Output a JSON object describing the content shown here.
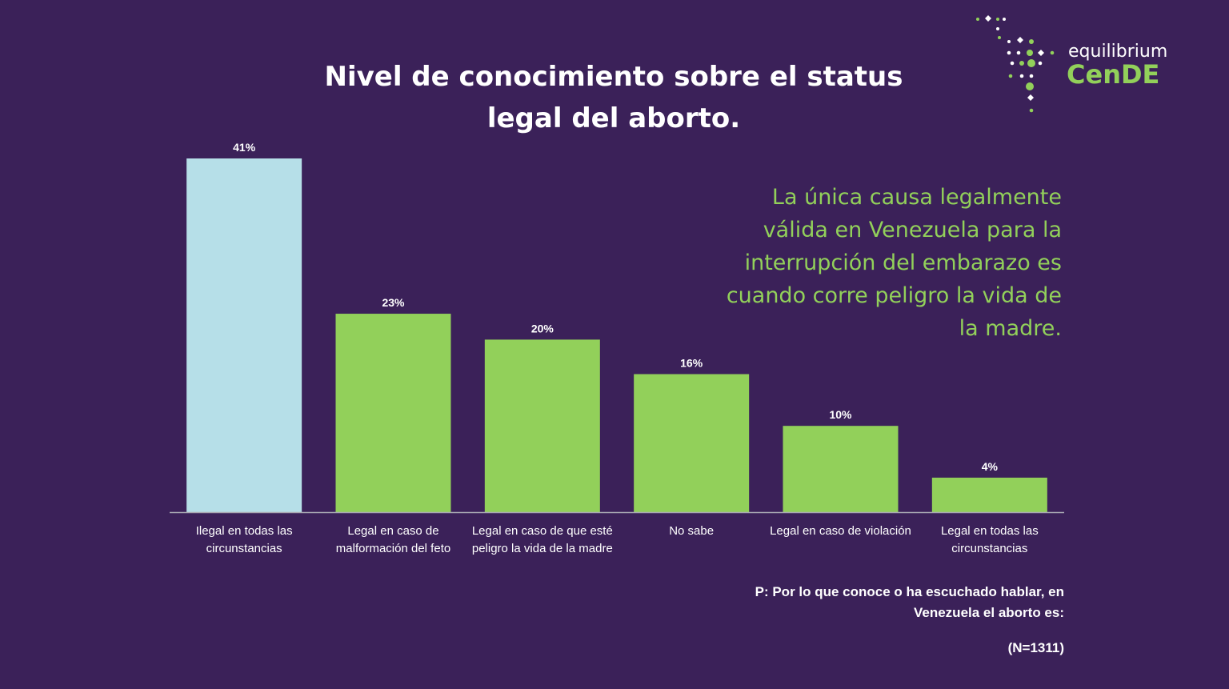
{
  "chart_data": {
    "type": "bar",
    "title": "Nivel de conocimiento sobre el status legal del aborto.",
    "categories": [
      [
        "Ilegal en todas las",
        "circunstancias"
      ],
      [
        "Legal en caso de",
        "malformación del feto"
      ],
      [
        "Legal en caso de que esté",
        "peligro la vida de la madre"
      ],
      [
        "No sabe"
      ],
      [
        "Legal en caso de violación"
      ],
      [
        "Legal en todas las",
        "circunstancias"
      ]
    ],
    "values": [
      41,
      23,
      20,
      16,
      10,
      4
    ],
    "value_labels": [
      "41%",
      "23%",
      "20%",
      "16%",
      "10%",
      "4%"
    ],
    "unit": "%",
    "bar_colors": [
      "#b6dfe8",
      "#92d05a",
      "#92d05a",
      "#92d05a",
      "#92d05a",
      "#92d05a"
    ],
    "ylim": [
      0,
      41
    ],
    "grid": false,
    "annotation": [
      "La única causa legalmente",
      "válida en Venezuela para la",
      "interrupción del embarazo es",
      "cuando corre peligro la vida de",
      "la madre."
    ]
  },
  "title_lines": [
    "Nivel de conocimiento sobre el status",
    "legal del aborto."
  ],
  "question_lines": [
    "P: Por lo que conoce o ha escuchado hablar, en",
    "Venezuela el aborto es:"
  ],
  "sample": "(N=1311)",
  "logo": {
    "top": "equilibrium",
    "bottom": "CenDE"
  },
  "colors": {
    "background": "#3b2159",
    "accent_green": "#92d05a",
    "highlight_blue": "#b6dfe8",
    "axis": "#a9a9b3"
  }
}
